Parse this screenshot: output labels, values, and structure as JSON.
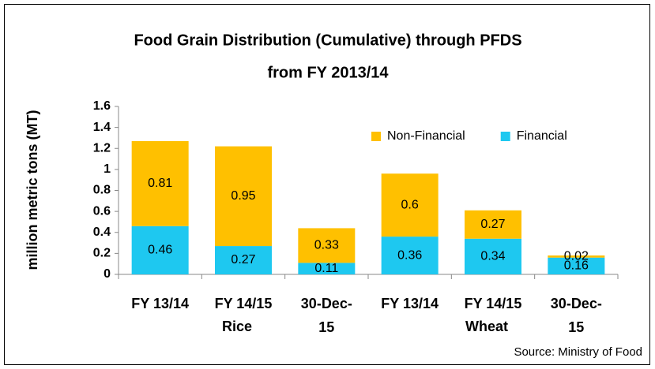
{
  "chart_data": {
    "type": "stacked_bar",
    "title": [
      "Food Grain Distribution (Cumulative) through PFDS",
      "from FY 2013/14"
    ],
    "y_label": "million metric tons (MT)",
    "categories": [
      "FY 13/14",
      "FY 14/15",
      "30-Dec-15",
      "FY 13/14",
      "FY 14/15",
      "30-Dec-15"
    ],
    "groups": [
      "Rice",
      "Wheat"
    ],
    "series": [
      {
        "name": "Financial",
        "color": "#1ec8f0",
        "values": [
          0.46,
          0.27,
          0.11,
          0.36,
          0.34,
          0.16
        ]
      },
      {
        "name": "Non-Financial",
        "color": "#ffc000",
        "values": [
          0.81,
          0.95,
          0.33,
          0.6,
          0.27,
          0.02
        ]
      }
    ],
    "ylim": [
      0,
      1.6
    ],
    "yticks": [
      0,
      0.2,
      0.4,
      0.6,
      0.8,
      1,
      1.2,
      1.4,
      1.6
    ],
    "grid": false,
    "legend": "top-right",
    "source": "Source: Ministry of Food"
  }
}
